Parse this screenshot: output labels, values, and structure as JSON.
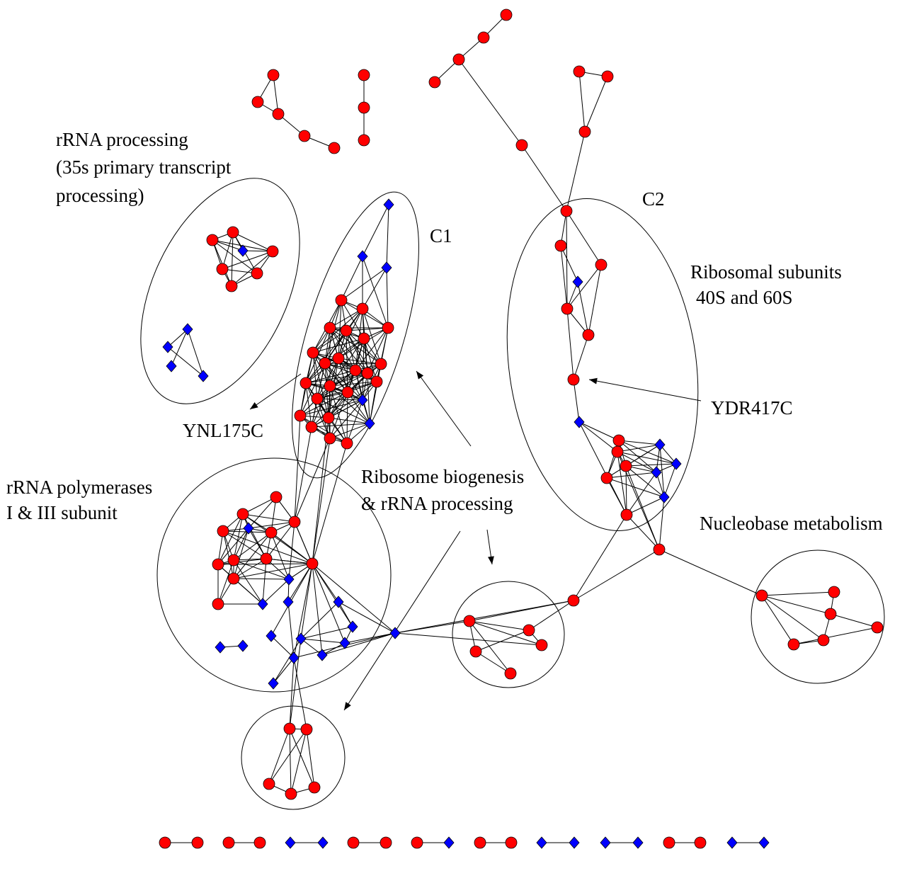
{
  "colors": {
    "circle_node": "#ff0000",
    "diamond_node": "#0000ff",
    "edge": "#000000"
  },
  "node_shapes": [
    "circle",
    "diamond"
  ],
  "labels": {
    "rrna_processing_1": "rRNA processing",
    "rrna_processing_2": "(35s primary transcript",
    "rrna_processing_3": "processing)",
    "c1": "C1",
    "c2": "C2",
    "ribosomal_1": "Ribosomal subunits",
    "ribosomal_2": "40S and 60S",
    "ynl175c": "YNL175C",
    "ydr417c": "YDR417C",
    "polymerases_1": "rRNA polymerases",
    "polymerases_2": "I & III subunit",
    "biogenesis_1": "Ribosome biogenesis",
    "biogenesis_2": "& rRNA processing",
    "nucleobase": "Nucleobase metabolism"
  }
}
